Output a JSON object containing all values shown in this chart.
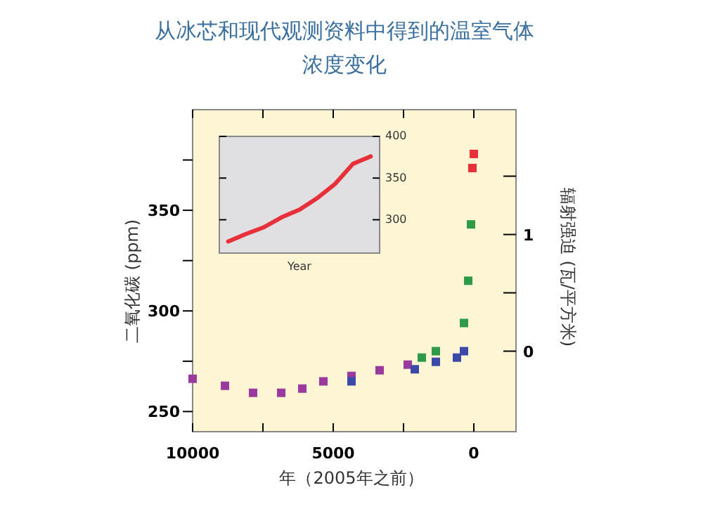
{
  "chart_data": [
    {
      "type": "scatter",
      "title": "从冰芯和现代观测资料中得到的温室气体浓度变化",
      "xlabel": "年（2005年之前）",
      "ylabel": "二氧化碳 (ppm)",
      "y2label": "辐射强迫 (瓦/平方米)",
      "xlim": [
        10000,
        -1500
      ],
      "ylim": [
        240,
        400
      ],
      "xticks": [
        10000,
        {
          "value": 7500,
          "label": null
        },
        5000,
        {
          "value": 2500,
          "label": null
        },
        0
      ],
      "yticks": [
        250,
        {
          "value": 275,
          "label": null
        },
        300,
        {
          "value": 325,
          "label": null
        },
        350,
        {
          "value": 375,
          "label": null
        }
      ],
      "y2lim": [
        -0.69,
        2.07
      ],
      "y2ticks": [
        0,
        {
          "value": 0.5,
          "label": null
        },
        1,
        {
          "value": 1.5,
          "label": null
        }
      ],
      "marker": "square",
      "series": [
        {
          "color": "#9b3a9e",
          "x": [
            10000,
            8850,
            7850,
            6850,
            6100,
            5350,
            4350,
            3350,
            2350
          ],
          "values": [
            266.3,
            262.8,
            259.3,
            259.3,
            261.4,
            265,
            267.7,
            270.5,
            273.3
          ]
        },
        {
          "color": "#3b4aa8",
          "x": [
            4350,
            2100,
            1350,
            600,
            350
          ],
          "values": [
            265,
            271,
            274.7,
            276.8,
            280
          ]
        },
        {
          "color": "#2e9a4a",
          "x": [
            1850,
            1350,
            350,
            200,
            100
          ],
          "values": [
            276.8,
            280,
            294,
            315,
            343
          ]
        },
        {
          "color": "#e8303a",
          "x": [
            50,
            0
          ],
          "values": [
            371,
            378
          ]
        }
      ]
    },
    {
      "type": "line",
      "xlabel": "Year",
      "categories": [
        null,
        null,
        null,
        null,
        null,
        null,
        null,
        null,
        null
      ],
      "ylim": [
        260,
        400
      ],
      "yticks": [
        300,
        350,
        400
      ],
      "series": [
        {
          "color": "#e8303a",
          "values": [
            274,
            283,
            291,
            303,
            312,
            326,
            343,
            367,
            376
          ]
        }
      ]
    }
  ]
}
